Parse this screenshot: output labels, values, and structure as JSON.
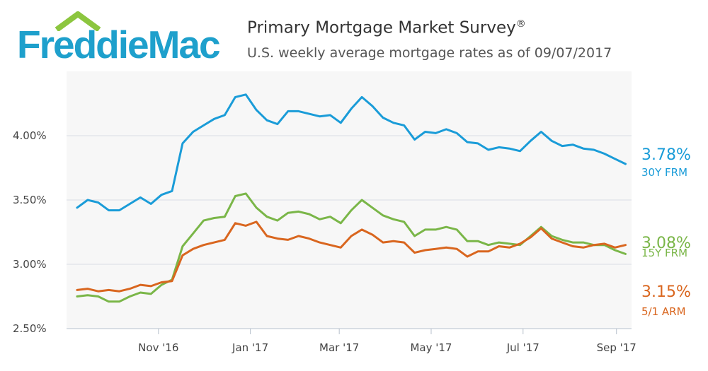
{
  "header": {
    "logo_text": "FreddieMac",
    "title": "Primary Mortgage Market Survey",
    "title_mark": "®",
    "subtitle": "U.S. weekly average mortgage rates as of 09/07/2017"
  },
  "colors": {
    "brand": "#1ea0cc",
    "roof": "#8cc63f",
    "frm30": "#1a9cd8",
    "frm15": "#7ab648",
    "arm51": "#d9661f",
    "plot_bg": "#f7f7f7",
    "grid": "#d8dde6"
  },
  "chart_data": {
    "type": "line",
    "x_start": "2016-09-08",
    "x_end": "2017-09-07",
    "x_range": [
      "2016-09-01",
      "2017-09-11"
    ],
    "ylim": [
      2.5,
      4.5
    ],
    "y_ticks": [
      {
        "value": 2.5,
        "label": "2.50%"
      },
      {
        "value": 3.0,
        "label": "3.00%"
      },
      {
        "value": 3.5,
        "label": "3.50%"
      },
      {
        "value": 4.0,
        "label": "4.00%"
      }
    ],
    "x_ticks": [
      {
        "date": "2016-11-01",
        "label": "Nov '16"
      },
      {
        "date": "2017-01-01",
        "label": "Jan '17"
      },
      {
        "date": "2017-03-01",
        "label": "Mar '17"
      },
      {
        "date": "2017-05-01",
        "label": "May '17"
      },
      {
        "date": "2017-07-01",
        "label": "Jul '17"
      },
      {
        "date": "2017-09-01",
        "label": "Sep '17"
      }
    ],
    "grid": true,
    "legend": "right-end labels",
    "series": [
      {
        "name": "30Y FRM",
        "end_label": "3.78%",
        "color": "#1a9cd8",
        "values": [
          3.44,
          3.5,
          3.48,
          3.42,
          3.42,
          3.47,
          3.52,
          3.47,
          3.54,
          3.57,
          3.94,
          4.03,
          4.08,
          4.13,
          4.16,
          4.3,
          4.32,
          4.2,
          4.12,
          4.09,
          4.19,
          4.19,
          4.17,
          4.15,
          4.16,
          4.1,
          4.21,
          4.3,
          4.23,
          4.14,
          4.1,
          4.08,
          3.97,
          4.03,
          4.02,
          4.05,
          4.02,
          3.95,
          3.94,
          3.89,
          3.91,
          3.9,
          3.88,
          3.96,
          4.03,
          3.96,
          3.92,
          3.93,
          3.9,
          3.89,
          3.86,
          3.82,
          3.78
        ]
      },
      {
        "name": "15Y FRM",
        "end_label": "3.08%",
        "color": "#7ab648",
        "values": [
          2.75,
          2.76,
          2.75,
          2.71,
          2.71,
          2.75,
          2.78,
          2.77,
          2.84,
          2.88,
          3.14,
          3.24,
          3.34,
          3.36,
          3.37,
          3.53,
          3.55,
          3.44,
          3.37,
          3.34,
          3.4,
          3.41,
          3.39,
          3.35,
          3.37,
          3.32,
          3.42,
          3.5,
          3.44,
          3.38,
          3.35,
          3.33,
          3.22,
          3.27,
          3.27,
          3.29,
          3.27,
          3.18,
          3.18,
          3.15,
          3.17,
          3.16,
          3.15,
          3.22,
          3.29,
          3.22,
          3.19,
          3.17,
          3.17,
          3.15,
          3.15,
          3.11,
          3.08
        ]
      },
      {
        "name": "5/1 ARM",
        "end_label": "3.15%",
        "color": "#d9661f",
        "values": [
          2.8,
          2.81,
          2.79,
          2.8,
          2.79,
          2.81,
          2.84,
          2.83,
          2.86,
          2.87,
          3.07,
          3.12,
          3.15,
          3.17,
          3.19,
          3.32,
          3.3,
          3.33,
          3.22,
          3.2,
          3.19,
          3.22,
          3.2,
          3.17,
          3.15,
          3.13,
          3.22,
          3.27,
          3.23,
          3.17,
          3.18,
          3.17,
          3.09,
          3.11,
          3.12,
          3.13,
          3.12,
          3.06,
          3.1,
          3.1,
          3.14,
          3.13,
          3.16,
          3.21,
          3.28,
          3.2,
          3.17,
          3.14,
          3.13,
          3.15,
          3.16,
          3.13,
          3.15
        ]
      }
    ]
  }
}
